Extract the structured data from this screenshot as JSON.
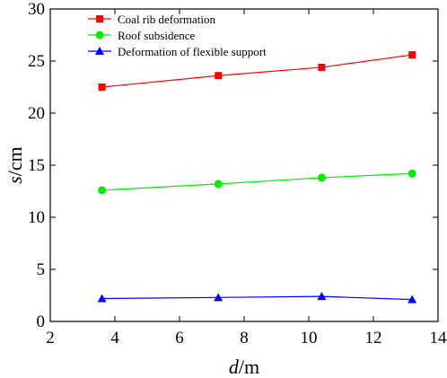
{
  "chart_data": {
    "type": "line",
    "xlabel_var": "d",
    "xlabel_unit": "/m",
    "ylabel_var": "s",
    "ylabel_unit": "/cm",
    "xlim": [
      2,
      14
    ],
    "ylim": [
      0,
      30
    ],
    "xticks": [
      "2",
      "4",
      "6",
      "8",
      "10",
      "12",
      "14"
    ],
    "yticks": [
      "0",
      "5",
      "10",
      "15",
      "20",
      "25",
      "30"
    ],
    "grid": false,
    "legend_position": "top-left",
    "x": [
      3.6,
      7.2,
      10.4,
      13.2
    ],
    "series": [
      {
        "name": "Coal rib deformation",
        "values": [
          22.5,
          23.6,
          24.4,
          25.6
        ],
        "color": "#ff0000",
        "marker": "square"
      },
      {
        "name": "Roof subsidence",
        "values": [
          12.6,
          13.2,
          13.8,
          14.2
        ],
        "color": "#00ee00",
        "marker": "circle"
      },
      {
        "name": "Deformation of flexible support",
        "values": [
          2.2,
          2.3,
          2.4,
          2.1
        ],
        "color": "#0000ff",
        "marker": "triangle"
      }
    ]
  }
}
